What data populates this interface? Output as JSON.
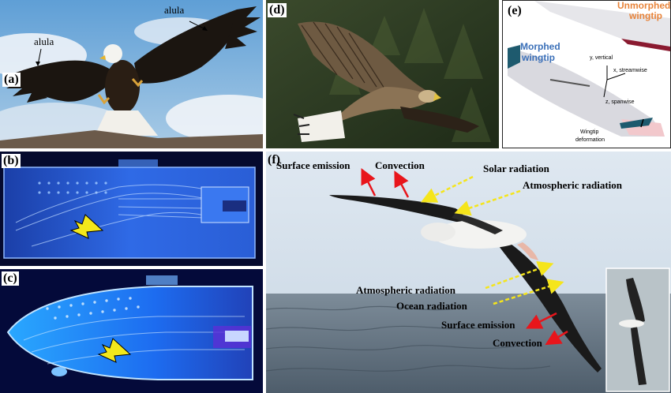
{
  "panels": {
    "a": {
      "label": "(a)",
      "annotations": [
        "alula",
        "alula"
      ]
    },
    "b": {
      "label": "(b)"
    },
    "c": {
      "label": "(c)"
    },
    "d": {
      "label": "(d)"
    },
    "e": {
      "label": "(e)",
      "unmorphed": [
        "Unmorphed",
        "wingtip"
      ],
      "morphed": [
        "Morphed",
        "wingtip"
      ],
      "axes": {
        "y": "y, vertical",
        "x": "x, streamwise",
        "z": "z, spanwise"
      },
      "deformation": [
        "Wingtip",
        "deformation"
      ]
    },
    "f": {
      "label": "(f)",
      "annotations": {
        "surface_emission_top": "Surface emission",
        "convection_top": "Convection",
        "solar_radiation": "Solar radiation",
        "atmospheric_radiation_top": "Atmospheric radiation",
        "atmospheric_radiation_bottom": "Atmospheric radiation",
        "ocean_radiation": "Ocean radiation",
        "surface_emission_bottom": "Surface emission",
        "convection_bottom": "Convection"
      }
    }
  },
  "colors": {
    "red_arrow": "#e8151b",
    "yellow_arrow": "#f5e51b",
    "unmorphed_text": "#e8843a",
    "morphed_text": "#3a6fb8",
    "glow_blue": "#2a6cff"
  }
}
